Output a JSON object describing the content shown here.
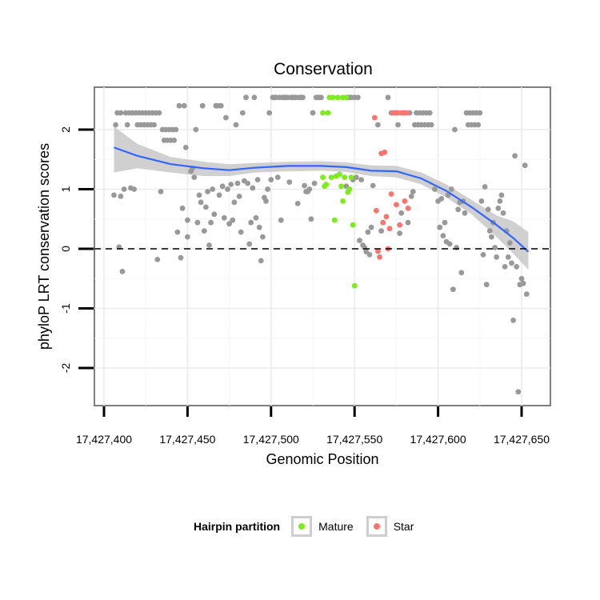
{
  "chart_data": {
    "type": "scatter",
    "title": "Conservation",
    "xlabel": "Genomic Position",
    "ylabel": "phyloP LRT conservation scores",
    "xlim": [
      17427390,
      17427660
    ],
    "ylim": [
      -2.6,
      2.7
    ],
    "x_ticks": [
      17427400,
      17427450,
      17427500,
      17427550,
      17427600,
      17427650
    ],
    "x_tick_labels": [
      "17,427,400",
      "17,427,450",
      "17,427,500",
      "17,427,550",
      "17,427,600",
      "17,427,650"
    ],
    "y_ticks": [
      -2,
      -1,
      0,
      1,
      2
    ],
    "y_tick_labels": [
      "-2",
      "-1",
      "0",
      "1",
      "2"
    ],
    "reference_line": {
      "y": 0,
      "style": "dashed"
    },
    "colors": {
      "other": "#999999",
      "Mature": "#7cec1c",
      "Star": "#f8766d",
      "smooth": "#3366ff",
      "ribbon": "#c8c8c8"
    },
    "legend": {
      "title": "Hairpin partition",
      "entries": [
        {
          "label": "Mature",
          "color": "#7cec1c"
        },
        {
          "label": "Star",
          "color": "#f8766d"
        }
      ]
    },
    "series": [
      {
        "name": "other",
        "points": [
          [
            17427406,
            0.9
          ],
          [
            17427407,
            2.08
          ],
          [
            17427408,
            2.28
          ],
          [
            17427409,
            0.03
          ],
          [
            17427410,
            2.28
          ],
          [
            17427410,
            0.88
          ],
          [
            17427411,
            -0.38
          ],
          [
            17427412,
            1.0
          ],
          [
            17427413,
            2.28
          ],
          [
            17427414,
            2.08
          ],
          [
            17427415,
            2.28
          ],
          [
            17427416,
            1.02
          ],
          [
            17427417,
            2.28
          ],
          [
            17427418,
            1.0
          ],
          [
            17427419,
            2.28
          ],
          [
            17427420,
            2.08
          ],
          [
            17427421,
            2.28
          ],
          [
            17427422,
            2.08
          ],
          [
            17427423,
            2.28
          ],
          [
            17427424,
            2.08
          ],
          [
            17427425,
            2.28
          ],
          [
            17427426,
            2.08
          ],
          [
            17427427,
            2.28
          ],
          [
            17427428,
            2.08
          ],
          [
            17427429,
            2.28
          ],
          [
            17427430,
            2.08
          ],
          [
            17427431,
            2.28
          ],
          [
            17427432,
            -0.18
          ],
          [
            17427433,
            2.28
          ],
          [
            17427434,
            0.96
          ],
          [
            17427435,
            2.0
          ],
          [
            17427436,
            1.82
          ],
          [
            17427437,
            2.0
          ],
          [
            17427438,
            1.82
          ],
          [
            17427439,
            2.0
          ],
          [
            17427440,
            1.82
          ],
          [
            17427441,
            2.0
          ],
          [
            17427442,
            1.82
          ],
          [
            17427443,
            2.0
          ],
          [
            17427444,
            0.28
          ],
          [
            17427445,
            2.4
          ],
          [
            17427446,
            -0.15
          ],
          [
            17427447,
            0.68
          ],
          [
            17427448,
            2.4
          ],
          [
            17427449,
            1.7
          ],
          [
            17427450,
            0.48
          ],
          [
            17427450,
            0.2
          ],
          [
            17427452,
            1.3
          ],
          [
            17427453,
            1.35
          ],
          [
            17427454,
            1.2
          ],
          [
            17427455,
            2.0
          ],
          [
            17427456,
            0.44
          ],
          [
            17427457,
            0.9
          ],
          [
            17427458,
            0.78
          ],
          [
            17427459,
            2.4
          ],
          [
            17427460,
            0.3
          ],
          [
            17427461,
            0.7
          ],
          [
            17427462,
            0.96
          ],
          [
            17427463,
            0.06
          ],
          [
            17427464,
            0.44
          ],
          [
            17427465,
            1.0
          ],
          [
            17427466,
            0.58
          ],
          [
            17427467,
            2.4
          ],
          [
            17427468,
            2.4
          ],
          [
            17427469,
            0.9
          ],
          [
            17427470,
            2.4
          ],
          [
            17427471,
            1.05
          ],
          [
            17427472,
            0.52
          ],
          [
            17427473,
            2.2
          ],
          [
            17427474,
            1.0
          ],
          [
            17427475,
            0.42
          ],
          [
            17427476,
            1.08
          ],
          [
            17427477,
            0.48
          ],
          [
            17427478,
            0.78
          ],
          [
            17427479,
            2.08
          ],
          [
            17427480,
            1.1
          ],
          [
            17427481,
            0.88
          ],
          [
            17427482,
            0.28
          ],
          [
            17427483,
            2.28
          ],
          [
            17427484,
            1.14
          ],
          [
            17427485,
            2.54
          ],
          [
            17427486,
            1.1
          ],
          [
            17427487,
            0.08
          ],
          [
            17427488,
            0.44
          ],
          [
            17427489,
            1.02
          ],
          [
            17427490,
            2.54
          ],
          [
            17427491,
            0.52
          ],
          [
            17427492,
            1.16
          ],
          [
            17427493,
            0.36
          ],
          [
            17427494,
            -0.2
          ],
          [
            17427495,
            0.2
          ],
          [
            17427496,
            0.86
          ],
          [
            17427497,
            0.8
          ],
          [
            17427498,
            1.0
          ],
          [
            17427499,
            2.28
          ],
          [
            17427500,
            1.16
          ],
          [
            17427501,
            2.54
          ],
          [
            17427502,
            2.54
          ],
          [
            17427503,
            2.54
          ],
          [
            17427504,
            1.2
          ],
          [
            17427505,
            2.54
          ],
          [
            17427506,
            0.48
          ],
          [
            17427507,
            2.54
          ],
          [
            17427508,
            2.54
          ],
          [
            17427509,
            2.54
          ],
          [
            17427510,
            2.54
          ],
          [
            17427511,
            1.12
          ],
          [
            17427512,
            2.54
          ],
          [
            17427513,
            2.54
          ],
          [
            17427514,
            2.54
          ],
          [
            17427515,
            2.54
          ],
          [
            17427516,
            0.76
          ],
          [
            17427517,
            2.54
          ],
          [
            17427518,
            2.54
          ],
          [
            17427519,
            2.54
          ],
          [
            17427520,
            1.06
          ],
          [
            17427521,
            0.96
          ],
          [
            17427522,
            0.96
          ],
          [
            17427523,
            1.0
          ],
          [
            17427524,
            0.5
          ],
          [
            17427525,
            2.28
          ],
          [
            17427526,
            1.1
          ],
          [
            17427527,
            2.54
          ],
          [
            17427528,
            2.54
          ],
          [
            17427529,
            2.54
          ],
          [
            17427530,
            2.54
          ],
          [
            17427545,
            1.05
          ],
          [
            17427546,
            2.54
          ],
          [
            17427547,
            2.54
          ],
          [
            17427548,
            2.54
          ],
          [
            17427549,
            1.16
          ],
          [
            17427550,
            2.54
          ],
          [
            17427551,
            1.2
          ],
          [
            17427552,
            2.54
          ],
          [
            17427553,
            0.14
          ],
          [
            17427554,
            1.16
          ],
          [
            17427555,
            0.06
          ],
          [
            17427556,
            0.02
          ],
          [
            17427557,
            -0.05
          ],
          [
            17427558,
            0.28
          ],
          [
            17427559,
            -0.1
          ],
          [
            17427560,
            0.36
          ],
          [
            17427561,
            1.06
          ],
          [
            17427564,
            2.08
          ],
          [
            17427566,
            0.3
          ],
          [
            17427570,
            2.54
          ],
          [
            17427572,
            2.28
          ],
          [
            17427575,
            2.28
          ],
          [
            17427576,
            2.08
          ],
          [
            17427577,
            0.26
          ],
          [
            17427578,
            0.6
          ],
          [
            17427580,
            2.28
          ],
          [
            17427582,
            0.44
          ],
          [
            17427583,
            2.28
          ],
          [
            17427584,
            0.88
          ],
          [
            17427585,
            0.96
          ],
          [
            17427586,
            2.08
          ],
          [
            17427587,
            2.28
          ],
          [
            17427588,
            2.08
          ],
          [
            17427589,
            2.28
          ],
          [
            17427590,
            2.08
          ],
          [
            17427591,
            2.28
          ],
          [
            17427592,
            2.08
          ],
          [
            17427593,
            2.28
          ],
          [
            17427594,
            2.08
          ],
          [
            17427595,
            2.28
          ],
          [
            17427596,
            2.08
          ],
          [
            17427598,
            1.0
          ],
          [
            17427600,
            0.8
          ],
          [
            17427601,
            0.36
          ],
          [
            17427602,
            0.84
          ],
          [
            17427603,
            0.22
          ],
          [
            17427604,
            0.44
          ],
          [
            17427605,
            0.12
          ],
          [
            17427606,
            0.9
          ],
          [
            17427607,
            0.08
          ],
          [
            17427608,
            1.0
          ],
          [
            17427609,
            -0.68
          ],
          [
            17427610,
            2.0
          ],
          [
            17427611,
            0.02
          ],
          [
            17427612,
            0.66
          ],
          [
            17427613,
            0.78
          ],
          [
            17427614,
            -0.4
          ],
          [
            17427615,
            0.8
          ],
          [
            17427616,
            0.6
          ],
          [
            17427617,
            2.28
          ],
          [
            17427618,
            2.08
          ],
          [
            17427619,
            2.28
          ],
          [
            17427620,
            2.08
          ],
          [
            17427621,
            2.28
          ],
          [
            17427622,
            2.08
          ],
          [
            17427623,
            2.28
          ],
          [
            17427624,
            2.08
          ],
          [
            17427625,
            2.28
          ],
          [
            17427626,
            0.8
          ],
          [
            17427627,
            -0.1
          ],
          [
            17427628,
            1.04
          ],
          [
            17427629,
            -0.6
          ],
          [
            17427630,
            0.66
          ],
          [
            17427631,
            0.3
          ],
          [
            17427632,
            0.2
          ],
          [
            17427633,
            0.44
          ],
          [
            17427634,
            0.02
          ],
          [
            17427635,
            -0.14
          ],
          [
            17427636,
            0.68
          ],
          [
            17427637,
            0.8
          ],
          [
            17427638,
            0.9
          ],
          [
            17427639,
            0.6
          ],
          [
            17427640,
            -0.3
          ],
          [
            17427641,
            0.3
          ],
          [
            17427642,
            -0.14
          ],
          [
            17427643,
            0.1
          ],
          [
            17427644,
            -0.24
          ],
          [
            17427645,
            -1.2
          ],
          [
            17427646,
            1.56
          ],
          [
            17427647,
            -0.3
          ],
          [
            17427648,
            -2.4
          ],
          [
            17427649,
            -0.6
          ],
          [
            17427650,
            -0.5
          ],
          [
            17427651,
            -0.58
          ],
          [
            17427652,
            1.4
          ],
          [
            17427653,
            -0.76
          ]
        ]
      },
      {
        "name": "Mature",
        "points": [
          [
            17427531,
            1.2
          ],
          [
            17427531,
            2.28
          ],
          [
            17427532,
            1.05
          ],
          [
            17427533,
            1.08
          ],
          [
            17427534,
            2.28
          ],
          [
            17427535,
            2.54
          ],
          [
            17427536,
            1.2
          ],
          [
            17427537,
            2.54
          ],
          [
            17427538,
            0.48
          ],
          [
            17427539,
            1.22
          ],
          [
            17427540,
            2.54
          ],
          [
            17427541,
            1.25
          ],
          [
            17427542,
            1.05
          ],
          [
            17427543,
            2.54
          ],
          [
            17427543,
            0.8
          ],
          [
            17427544,
            1.2
          ],
          [
            17427545,
            2.54
          ],
          [
            17427546,
            0.95
          ],
          [
            17427547,
            1.0
          ],
          [
            17427548,
            1.2
          ],
          [
            17427549,
            0.4
          ],
          [
            17427550,
            -0.62
          ]
        ]
      },
      {
        "name": "Star",
        "points": [
          [
            17427562,
            2.2
          ],
          [
            17427563,
            0.64
          ],
          [
            17427564,
            -0.04
          ],
          [
            17427565,
            -0.14
          ],
          [
            17427566,
            1.6
          ],
          [
            17427567,
            0.44
          ],
          [
            17427568,
            1.62
          ],
          [
            17427569,
            0.54
          ],
          [
            17427570,
            0.0
          ],
          [
            17427571,
            0.34
          ],
          [
            17427572,
            0.92
          ],
          [
            17427573,
            2.28
          ],
          [
            17427574,
            2.28
          ],
          [
            17427575,
            0.74
          ],
          [
            17427576,
            2.28
          ],
          [
            17427577,
            0.4
          ],
          [
            17427578,
            2.28
          ],
          [
            17427579,
            2.28
          ],
          [
            17427580,
            0.8
          ],
          [
            17427581,
            2.28
          ],
          [
            17427582,
            0.68
          ]
        ]
      }
    ],
    "smooth": {
      "method": "loess",
      "x": [
        17427406,
        17427420,
        17427440,
        17427460,
        17427475,
        17427490,
        17427510,
        17427530,
        17427545,
        17427560,
        17427575,
        17427590,
        17427605,
        17427620,
        17427635,
        17427645,
        17427654
      ],
      "y": [
        1.7,
        1.56,
        1.42,
        1.35,
        1.32,
        1.36,
        1.39,
        1.39,
        1.37,
        1.31,
        1.3,
        1.18,
        0.97,
        0.7,
        0.4,
        0.18,
        -0.05
      ],
      "lower": [
        1.28,
        1.35,
        1.28,
        1.22,
        1.22,
        1.28,
        1.3,
        1.31,
        1.29,
        1.22,
        1.2,
        1.08,
        0.86,
        0.58,
        0.2,
        -0.08,
        -0.35
      ],
      "upper": [
        2.05,
        1.76,
        1.54,
        1.46,
        1.42,
        1.44,
        1.46,
        1.47,
        1.45,
        1.4,
        1.39,
        1.28,
        1.08,
        0.82,
        0.56,
        0.46,
        0.28
      ]
    }
  }
}
